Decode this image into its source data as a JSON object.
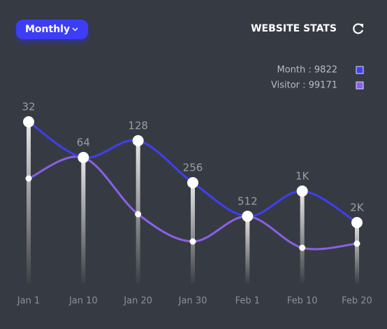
{
  "chart_data": {
    "type": "line",
    "title": "WEBSITE STATS",
    "filter": "Monthly",
    "legend_labels": [
      "Month : 9822",
      "Visitor : 99171"
    ],
    "categories": [
      "Jan 1",
      "Jan 10",
      "Jan 20",
      "Jan 30",
      "Feb 1",
      "Feb 10",
      "Feb 20"
    ],
    "point_labels": [
      "32",
      "64",
      "128",
      "256",
      "512",
      "1K",
      "2K"
    ],
    "series": [
      {
        "name": "Month",
        "color": "#3f3ff0",
        "values": [
          77,
          60,
          68,
          48,
          32,
          44,
          29
        ]
      },
      {
        "name": "Visitor",
        "color": "#8b5fe6",
        "values": [
          50,
          60,
          33,
          20,
          32,
          17,
          19
        ]
      }
    ],
    "ylim": [
      0,
      100
    ]
  }
}
